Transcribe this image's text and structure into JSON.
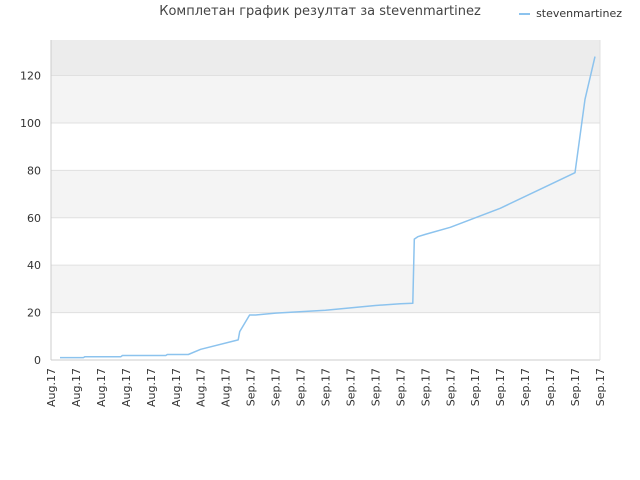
{
  "chart_data": {
    "type": "line",
    "title": "Комплетан график резултат за stevenmartinez",
    "legend": {
      "position": "top-right",
      "entries": [
        "stevenmartinez"
      ]
    },
    "colors": {
      "line": "#8cc3ee",
      "band_dark": "#ececec",
      "band_light": "#f4f4f4",
      "grid": "#e0e0e0",
      "axis": "#cccccc"
    },
    "grid": true,
    "ylim": [
      0,
      135
    ],
    "yticks": [
      0,
      20,
      40,
      60,
      80,
      100,
      120
    ],
    "xlim": [
      0,
      22
    ],
    "xticks": [
      "Aug.17",
      "Aug.17",
      "Aug.17",
      "Aug.17",
      "Aug.17",
      "Aug.17",
      "Aug.17",
      "Aug.17",
      "Sep.17",
      "Sep.17",
      "Sep.17",
      "Sep.17",
      "Sep.17",
      "Sep.17",
      "Sep.17",
      "Sep.17",
      "Sep.17",
      "Sep.17",
      "Sep.17",
      "Sep.17",
      "Sep.17",
      "Sep.17",
      "Sep.17"
    ],
    "series": [
      {
        "name": "stevenmartinez",
        "x": [
          0.36,
          1.3,
          1.36,
          2.8,
          2.86,
          4.6,
          4.66,
          5.5,
          6.0,
          7.5,
          7.56,
          7.96,
          8.2,
          9.0,
          11.0,
          13.0,
          14.0,
          14.5,
          14.56,
          14.7,
          15.0,
          16.0,
          18.0,
          20.0,
          21.0,
          21.4,
          21.8
        ],
        "y": [
          1,
          1,
          1.4,
          1.4,
          1.9,
          1.9,
          2.3,
          2.3,
          4.5,
          8.5,
          12,
          19,
          19,
          19.8,
          21,
          23,
          23.7,
          23.9,
          51,
          52,
          53,
          56,
          64,
          74,
          79,
          110,
          128
        ]
      }
    ]
  }
}
